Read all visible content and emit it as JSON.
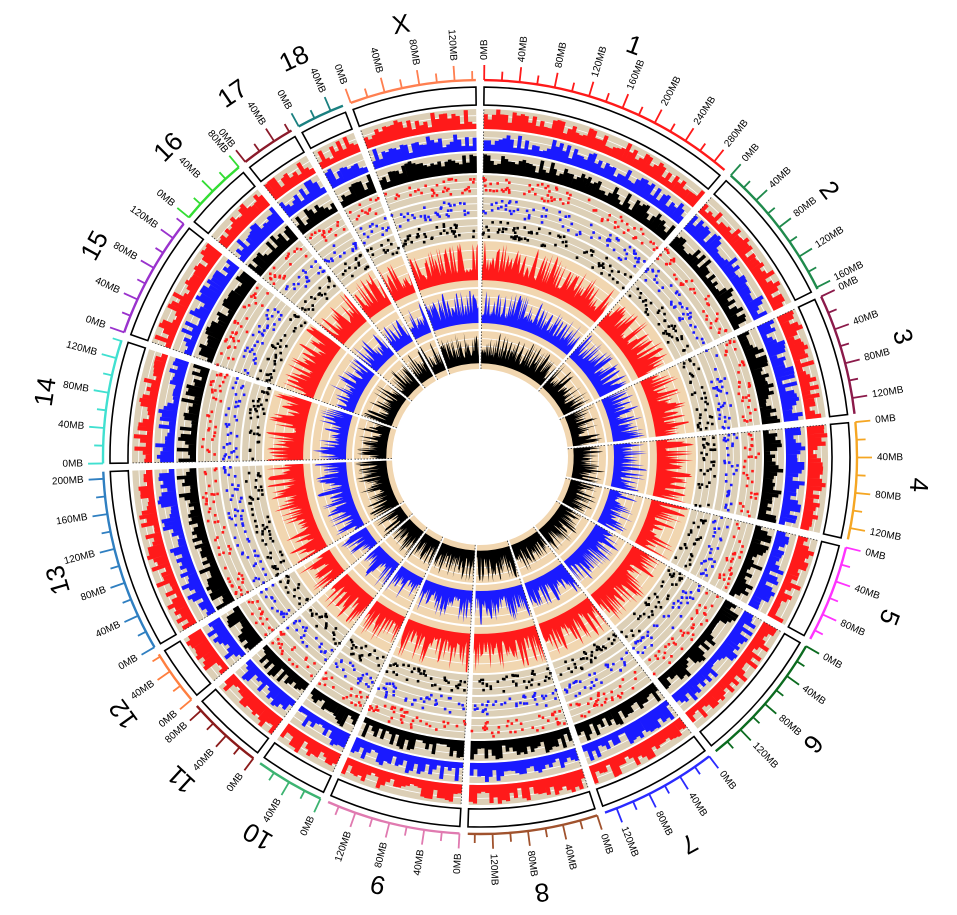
{
  "diagram": {
    "type": "circos",
    "chromosomes": [
      {
        "name": "1",
        "color": "#ff1a1a",
        "ticks": [
          "0MB",
          "40MB",
          "80MB",
          "120MB",
          "160MB",
          "200MB",
          "240MB",
          "280MB"
        ],
        "major_step_mb": 40,
        "length_mb": 295
      },
      {
        "name": "2",
        "color": "#1f8a4c",
        "ticks": [
          "0MB",
          "40MB",
          "80MB",
          "120MB",
          "160MB"
        ],
        "major_step_mb": 40,
        "length_mb": 162
      },
      {
        "name": "3",
        "color": "#8b1a4a",
        "ticks": [
          "0MB",
          "40MB",
          "80MB",
          "120MB"
        ],
        "major_step_mb": 40,
        "length_mb": 138
      },
      {
        "name": "4",
        "color": "#f5a623",
        "ticks": [
          "0MB",
          "40MB",
          "80MB",
          "120MB"
        ],
        "major_step_mb": 40,
        "length_mb": 133
      },
      {
        "name": "5",
        "color": "#ff33ff",
        "ticks": [
          "0MB",
          "40MB",
          "80MB"
        ],
        "major_step_mb": 40,
        "length_mb": 111
      },
      {
        "name": "6",
        "color": "#0b6b1f",
        "ticks": [
          "0MB",
          "40MB",
          "80MB",
          "120MB"
        ],
        "major_step_mb": 40,
        "length_mb": 157
      },
      {
        "name": "7",
        "color": "#2a2aff",
        "ticks": [
          "0MB",
          "40MB",
          "80MB",
          "120MB"
        ],
        "major_step_mb": 40,
        "length_mb": 134
      },
      {
        "name": "8",
        "color": "#a0522d",
        "ticks": [
          "0MB",
          "40MB",
          "80MB",
          "120MB"
        ],
        "major_step_mb": 40,
        "length_mb": 148
      },
      {
        "name": "9",
        "color": "#e07ab0",
        "ticks": [
          "0MB",
          "40MB",
          "80MB",
          "120MB"
        ],
        "major_step_mb": 40,
        "length_mb": 153
      },
      {
        "name": "10",
        "color": "#3cb371",
        "ticks": [
          "0MB",
          "40MB"
        ],
        "major_step_mb": 40,
        "length_mb": 79
      },
      {
        "name": "11",
        "color": "#8b1a1a",
        "ticks": [
          "0MB",
          "40MB",
          "80MB"
        ],
        "major_step_mb": 40,
        "length_mb": 87
      },
      {
        "name": "12",
        "color": "#ff7f3f",
        "ticks": [
          "0MB",
          "40MB"
        ],
        "major_step_mb": 40,
        "length_mb": 63
      },
      {
        "name": "13",
        "color": "#2f7fc1",
        "ticks": [
          "0MB",
          "40MB",
          "80MB",
          "120MB",
          "160MB",
          "200MB"
        ],
        "major_step_mb": 40,
        "length_mb": 208
      },
      {
        "name": "14",
        "color": "#40e0d0",
        "ticks": [
          "0MB",
          "40MB",
          "80MB",
          "120MB"
        ],
        "major_step_mb": 40,
        "length_mb": 141
      },
      {
        "name": "15",
        "color": "#9a32cd",
        "ticks": [
          "0MB",
          "40MB",
          "80MB",
          "120MB"
        ],
        "major_step_mb": 40,
        "length_mb": 140
      },
      {
        "name": "16",
        "color": "#33dd33",
        "ticks": [
          "0MB",
          "40MB",
          "80MB"
        ],
        "major_step_mb": 40,
        "length_mb": 80
      },
      {
        "name": "17",
        "color": "#8b1a2a",
        "ticks": [
          "0MB",
          "40MB"
        ],
        "major_step_mb": 40,
        "length_mb": 63
      },
      {
        "name": "18",
        "color": "#1a8080",
        "ticks": [
          "0MB",
          "40MB"
        ],
        "major_step_mb": 40,
        "length_mb": 55
      },
      {
        "name": "X",
        "color": "#ff7f50",
        "ticks": [
          "0MB",
          "40MB",
          "80MB",
          "120MB"
        ],
        "major_step_mb": 40,
        "length_mb": 144
      }
    ],
    "track_colors": {
      "red": "#ff1a1a",
      "blue": "#1a1aff",
      "black": "#000000",
      "track_background": "#dccfb6",
      "inner_background": "#f1d6b0",
      "grid_line": "#ffffff"
    }
  }
}
